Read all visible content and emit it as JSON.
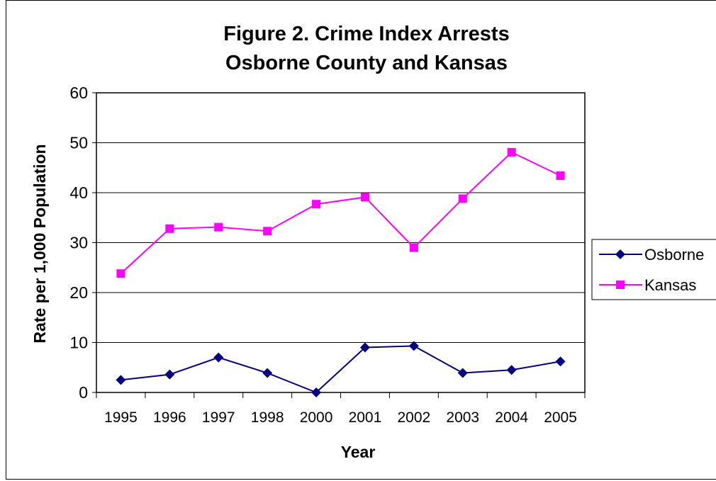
{
  "chart_data": {
    "type": "line",
    "title_lines": [
      "Figure 2. Crime Index Arrests",
      "Osborne County and Kansas"
    ],
    "xlabel": "Year",
    "ylabel": "Rate per 1,000 Population",
    "categories": [
      "1995",
      "1996",
      "1997",
      "1998",
      "2000",
      "2001",
      "2002",
      "2003",
      "2004",
      "2005"
    ],
    "ylim": [
      0,
      60
    ],
    "yticks": [
      0,
      10,
      20,
      30,
      40,
      50,
      60
    ],
    "grid": "horizontal",
    "legend_position": "right",
    "series": [
      {
        "name": "Osborne",
        "color": "#000080",
        "marker": "diamond",
        "values": [
          2.5,
          3.6,
          7.0,
          3.9,
          0.0,
          9.0,
          9.3,
          3.9,
          4.5,
          6.2
        ]
      },
      {
        "name": "Kansas",
        "color": "#FF00FF",
        "marker": "square",
        "values": [
          23.8,
          32.8,
          33.1,
          32.3,
          37.7,
          39.1,
          29.0,
          38.8,
          48.1,
          43.4
        ]
      }
    ]
  }
}
